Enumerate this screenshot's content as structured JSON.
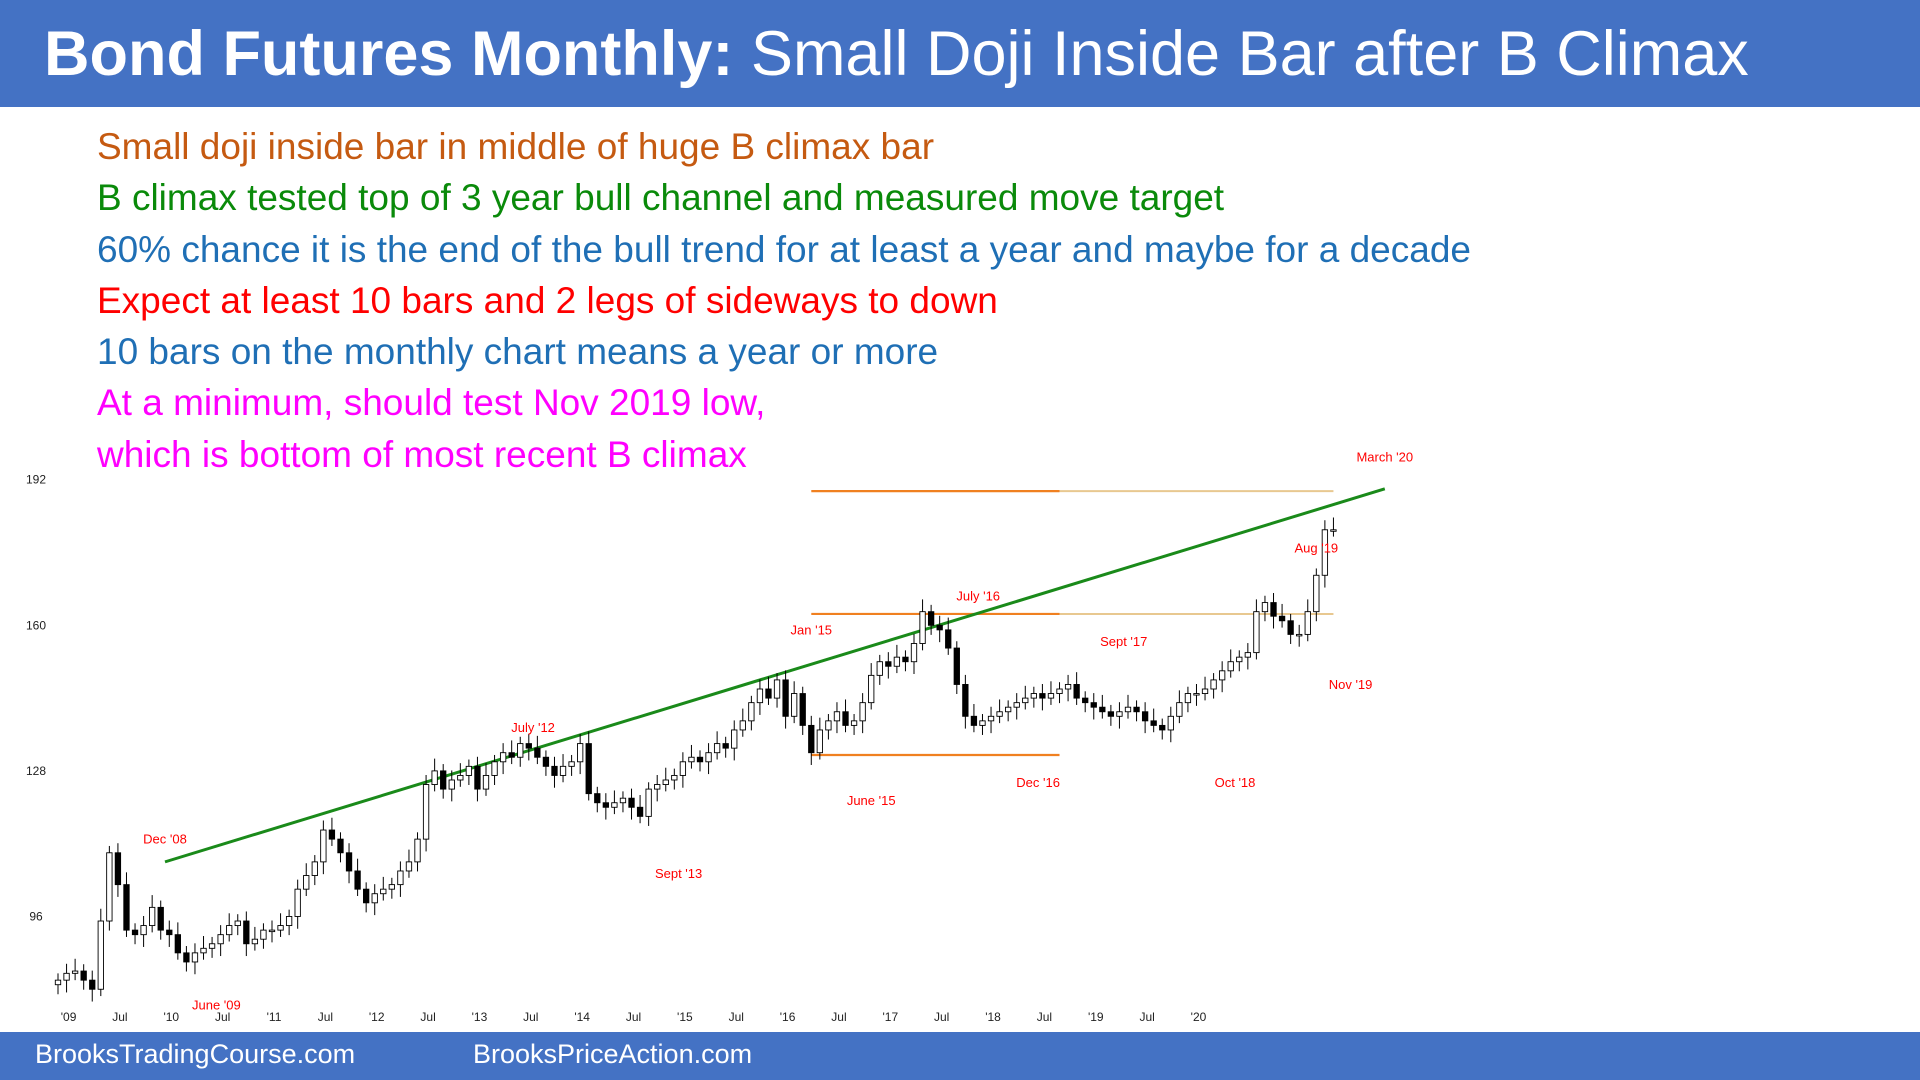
{
  "header": {
    "title_bold": "Bond Futures Monthly:",
    "title_rest": "Small Doji Inside Bar after B Climax"
  },
  "notes": [
    {
      "text": "Small doji inside bar in middle of huge B climax bar",
      "color": "#c55a11"
    },
    {
      "text": "B climax tested top of 3 year bull channel and measured move target",
      "color": "#0a8a0a"
    },
    {
      "text": "60% chance it is the end of the bull trend for at least a year and maybe for a decade",
      "color": "#1f6fb5"
    },
    {
      "text": "Expect at least 10 bars and 2 legs of sideways to down",
      "color": "#ff0000"
    },
    {
      "text": "10 bars on the monthly chart means a year or more",
      "color": "#1f6fb5"
    },
    {
      "text": "At a minimum, should test Nov 2019 low,",
      "color": "#ff00ff"
    },
    {
      "text": "which is bottom of most recent B climax",
      "color": "#ff00ff"
    }
  ],
  "footer": {
    "left": "BrooksTradingCourse.com",
    "right": "BrooksPriceAction.com"
  },
  "chart_data": {
    "type": "candlestick",
    "interval": "monthly",
    "colors": {
      "up_body": "#ffffff",
      "down_body": "#000000",
      "wick": "#000000",
      "channel_line": "#1a8a1a",
      "level_line": "#f08020",
      "level_line_light": "#e8c890",
      "label": "#ff0000",
      "axis_text": "#222222"
    },
    "ylim": [
      75,
      197
    ],
    "y_ticks": [
      96,
      128,
      160,
      192
    ],
    "x_ticks": [
      {
        "i": 1,
        "label": "'09"
      },
      {
        "i": 7,
        "label": "Jul"
      },
      {
        "i": 13,
        "label": "'10"
      },
      {
        "i": 19,
        "label": "Jul"
      },
      {
        "i": 25,
        "label": "'11"
      },
      {
        "i": 31,
        "label": "Jul"
      },
      {
        "i": 37,
        "label": "'12"
      },
      {
        "i": 43,
        "label": "Jul"
      },
      {
        "i": 49,
        "label": "'13"
      },
      {
        "i": 55,
        "label": "Jul"
      },
      {
        "i": 61,
        "label": "'14"
      },
      {
        "i": 67,
        "label": "Jul"
      },
      {
        "i": 73,
        "label": "'15"
      },
      {
        "i": 79,
        "label": "Jul"
      },
      {
        "i": 85,
        "label": "'16"
      },
      {
        "i": 91,
        "label": "Jul"
      },
      {
        "i": 97,
        "label": "'17"
      },
      {
        "i": 103,
        "label": "Jul"
      },
      {
        "i": 109,
        "label": "'18"
      },
      {
        "i": 115,
        "label": "Jul"
      },
      {
        "i": 121,
        "label": "'19"
      },
      {
        "i": 127,
        "label": "Jul"
      },
      {
        "i": 133,
        "label": "'20"
      }
    ],
    "closes": [
      82,
      83.5,
      84,
      82,
      80,
      95,
      110,
      103,
      93,
      92,
      94,
      98,
      93,
      92,
      88,
      86,
      88,
      89,
      90,
      92,
      94,
      95,
      90,
      91,
      93,
      93,
      94,
      96,
      102,
      105,
      108,
      115,
      113,
      110,
      106,
      102,
      99,
      101,
      102,
      103,
      106,
      108,
      113,
      125,
      128,
      124,
      126,
      127,
      129,
      124,
      127,
      130,
      132,
      131,
      134,
      133,
      131,
      129,
      127,
      129,
      130,
      134,
      123,
      121,
      120,
      121,
      122,
      120,
      118,
      124,
      125,
      126,
      127,
      130,
      131,
      130,
      132,
      134,
      133,
      137,
      139,
      143,
      146,
      144,
      148,
      140,
      145,
      138,
      132,
      137,
      139,
      141,
      138,
      139,
      143,
      149,
      152,
      151,
      153,
      152,
      156,
      163,
      160,
      159,
      155,
      147,
      140,
      138,
      139,
      140,
      141,
      142,
      143,
      144,
      145,
      144,
      145,
      146,
      147,
      144,
      143,
      142,
      141,
      140,
      141,
      142,
      141,
      139,
      138,
      137,
      140,
      143,
      145,
      145,
      146,
      148,
      150,
      152,
      153,
      154,
      163,
      165,
      162,
      161,
      158,
      158,
      163,
      171,
      181,
      181
    ],
    "channel_line": {
      "from": {
        "i": 12.5,
        "y": 108
      },
      "to": {
        "i": 155,
        "y": 190
      }
    },
    "levels": [
      {
        "y": 189.5,
        "from_i": 88,
        "to_i": 117,
        "style": "orange"
      },
      {
        "y": 189.5,
        "from_i": 117,
        "to_i": 149,
        "style": "light"
      },
      {
        "y": 162.5,
        "from_i": 88,
        "to_i": 117,
        "style": "orange"
      },
      {
        "y": 162.5,
        "from_i": 117,
        "to_i": 149,
        "style": "light"
      },
      {
        "y": 131.5,
        "from_i": 88,
        "to_i": 117,
        "style": "orange"
      }
    ],
    "labels": [
      {
        "text": "Dec '08",
        "i": 12.5,
        "y": 112
      },
      {
        "text": "June '09",
        "i": 18.5,
        "y": 75.5
      },
      {
        "text": "July '12",
        "i": 55.5,
        "y": 136.5
      },
      {
        "text": "Sept '13",
        "i": 72.5,
        "y": 104.5
      },
      {
        "text": "Jan '15",
        "i": 88,
        "y": 158
      },
      {
        "text": "June '15",
        "i": 95,
        "y": 120.5
      },
      {
        "text": "July '16",
        "i": 107.5,
        "y": 165.5
      },
      {
        "text": "Dec '16",
        "i": 114.5,
        "y": 124.5
      },
      {
        "text": "Sept '17",
        "i": 124.5,
        "y": 155.5
      },
      {
        "text": "Oct '18",
        "i": 137.5,
        "y": 124.5
      },
      {
        "text": "Aug '19",
        "i": 147,
        "y": 176
      },
      {
        "text": "Nov '19",
        "i": 151,
        "y": 146
      },
      {
        "text": "March '20",
        "i": 155,
        "y": 196
      }
    ]
  }
}
